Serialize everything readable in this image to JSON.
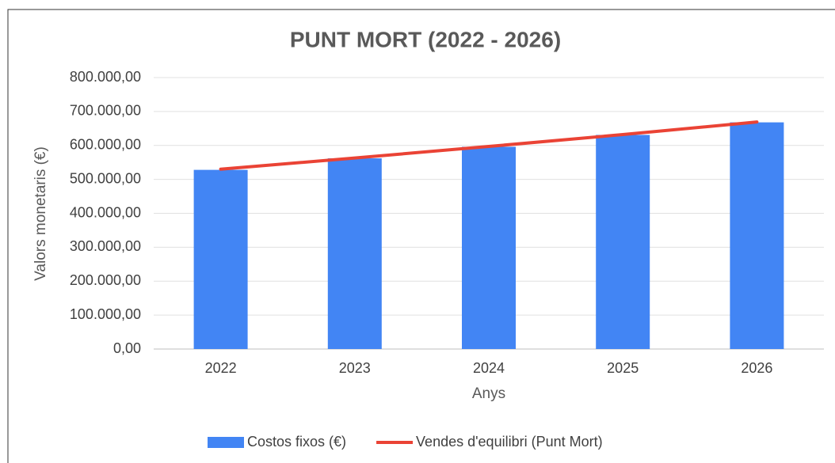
{
  "chart_data": {
    "type": "bar",
    "title": "PUNT MORT (2022 - 2026)",
    "x_label": "Anys",
    "y_label": "Valors monetaris (€)",
    "categories": [
      "2022",
      "2023",
      "2024",
      "2025",
      "2026"
    ],
    "series": [
      {
        "name": "Costos fixos (€)",
        "type": "bar",
        "color": "#4285f4",
        "values": [
          528000,
          562000,
          596000,
          631000,
          668000
        ]
      },
      {
        "name": "Vendes d'equilibri (Punt Mort)",
        "type": "line",
        "color": "#ea4335",
        "values": [
          530000,
          563000,
          597000,
          632000,
          669000
        ]
      }
    ],
    "ylim": [
      0,
      800000
    ],
    "yticks": [
      {
        "value": 0,
        "label": "0,00"
      },
      {
        "value": 100000,
        "label": "100.000,00"
      },
      {
        "value": 200000,
        "label": "200.000,00"
      },
      {
        "value": 300000,
        "label": "300.000,00"
      },
      {
        "value": 400000,
        "label": "400.000,00"
      },
      {
        "value": 500000,
        "label": "500.000,00"
      },
      {
        "value": 600000,
        "label": "600.000,00"
      },
      {
        "value": 700000,
        "label": "700.000,00"
      },
      {
        "value": 800000,
        "label": "800.000,00"
      }
    ],
    "grid": true,
    "legend": "bottom"
  }
}
